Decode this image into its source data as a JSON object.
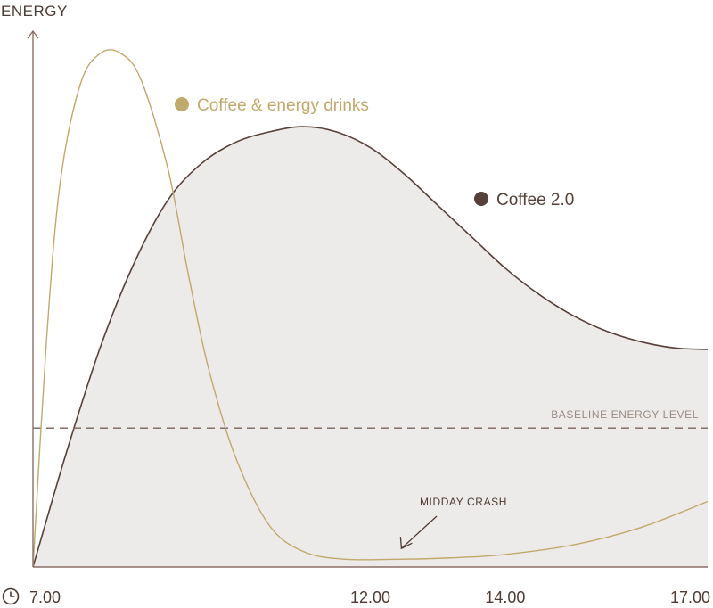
{
  "chart_data": {
    "type": "line",
    "ylabel": "ENERGY",
    "xlabel": "",
    "x_ticks": [
      "7.00",
      "12.00",
      "14.00",
      "17.00"
    ],
    "x_tick_values": [
      7,
      12,
      14,
      17
    ],
    "xlim": [
      7,
      17
    ],
    "ylim": [
      0,
      100
    ],
    "grid": false,
    "legend_position": "inside",
    "series": [
      {
        "name": "Coffee & energy drinks",
        "color": "#c0a96a",
        "x": [
          7.0,
          7.2,
          7.4,
          7.7,
          8.0,
          8.3,
          8.6,
          9.0,
          9.3,
          9.6,
          10.0,
          10.5,
          11.0,
          11.6,
          12.5,
          13.3,
          14.0,
          15.0,
          16.0,
          17.0
        ],
        "y": [
          0,
          43,
          73,
          92,
          98,
          98,
          93,
          76,
          56,
          38,
          21,
          8,
          3,
          1.5,
          1.5,
          1.8,
          2.4,
          4.2,
          7.5,
          12.5
        ]
      },
      {
        "name": "Coffee 2.0",
        "color": "#56403a",
        "x": [
          7.0,
          7.5,
          8.0,
          8.5,
          9.0,
          9.5,
          10.0,
          10.5,
          11.0,
          11.5,
          12.0,
          12.5,
          13.0,
          13.5,
          14.0,
          14.5,
          15.0,
          15.5,
          16.0,
          16.5,
          17.0
        ],
        "y": [
          0,
          22,
          42,
          58,
          70,
          77,
          81,
          83,
          84,
          83,
          80,
          75,
          69,
          63,
          57,
          52,
          48,
          45,
          43,
          41.8,
          41.5
        ]
      }
    ],
    "baseline": {
      "label": "BASELINE ENERGY LEVEL",
      "y": 26.5
    },
    "annotation": {
      "text": "MIDDAY CRASH",
      "x": 12.5,
      "y": 1.5
    }
  },
  "colors": {
    "axis": "#8a6f67",
    "area_fill": "#edebe9",
    "coffee_energy": "#c0a96a",
    "coffee2": "#56403a",
    "baseline": "#7a625a",
    "baseline_label": "#9a8a85",
    "text": "#4e3a32"
  },
  "icons": {
    "clock": "clock-icon"
  }
}
